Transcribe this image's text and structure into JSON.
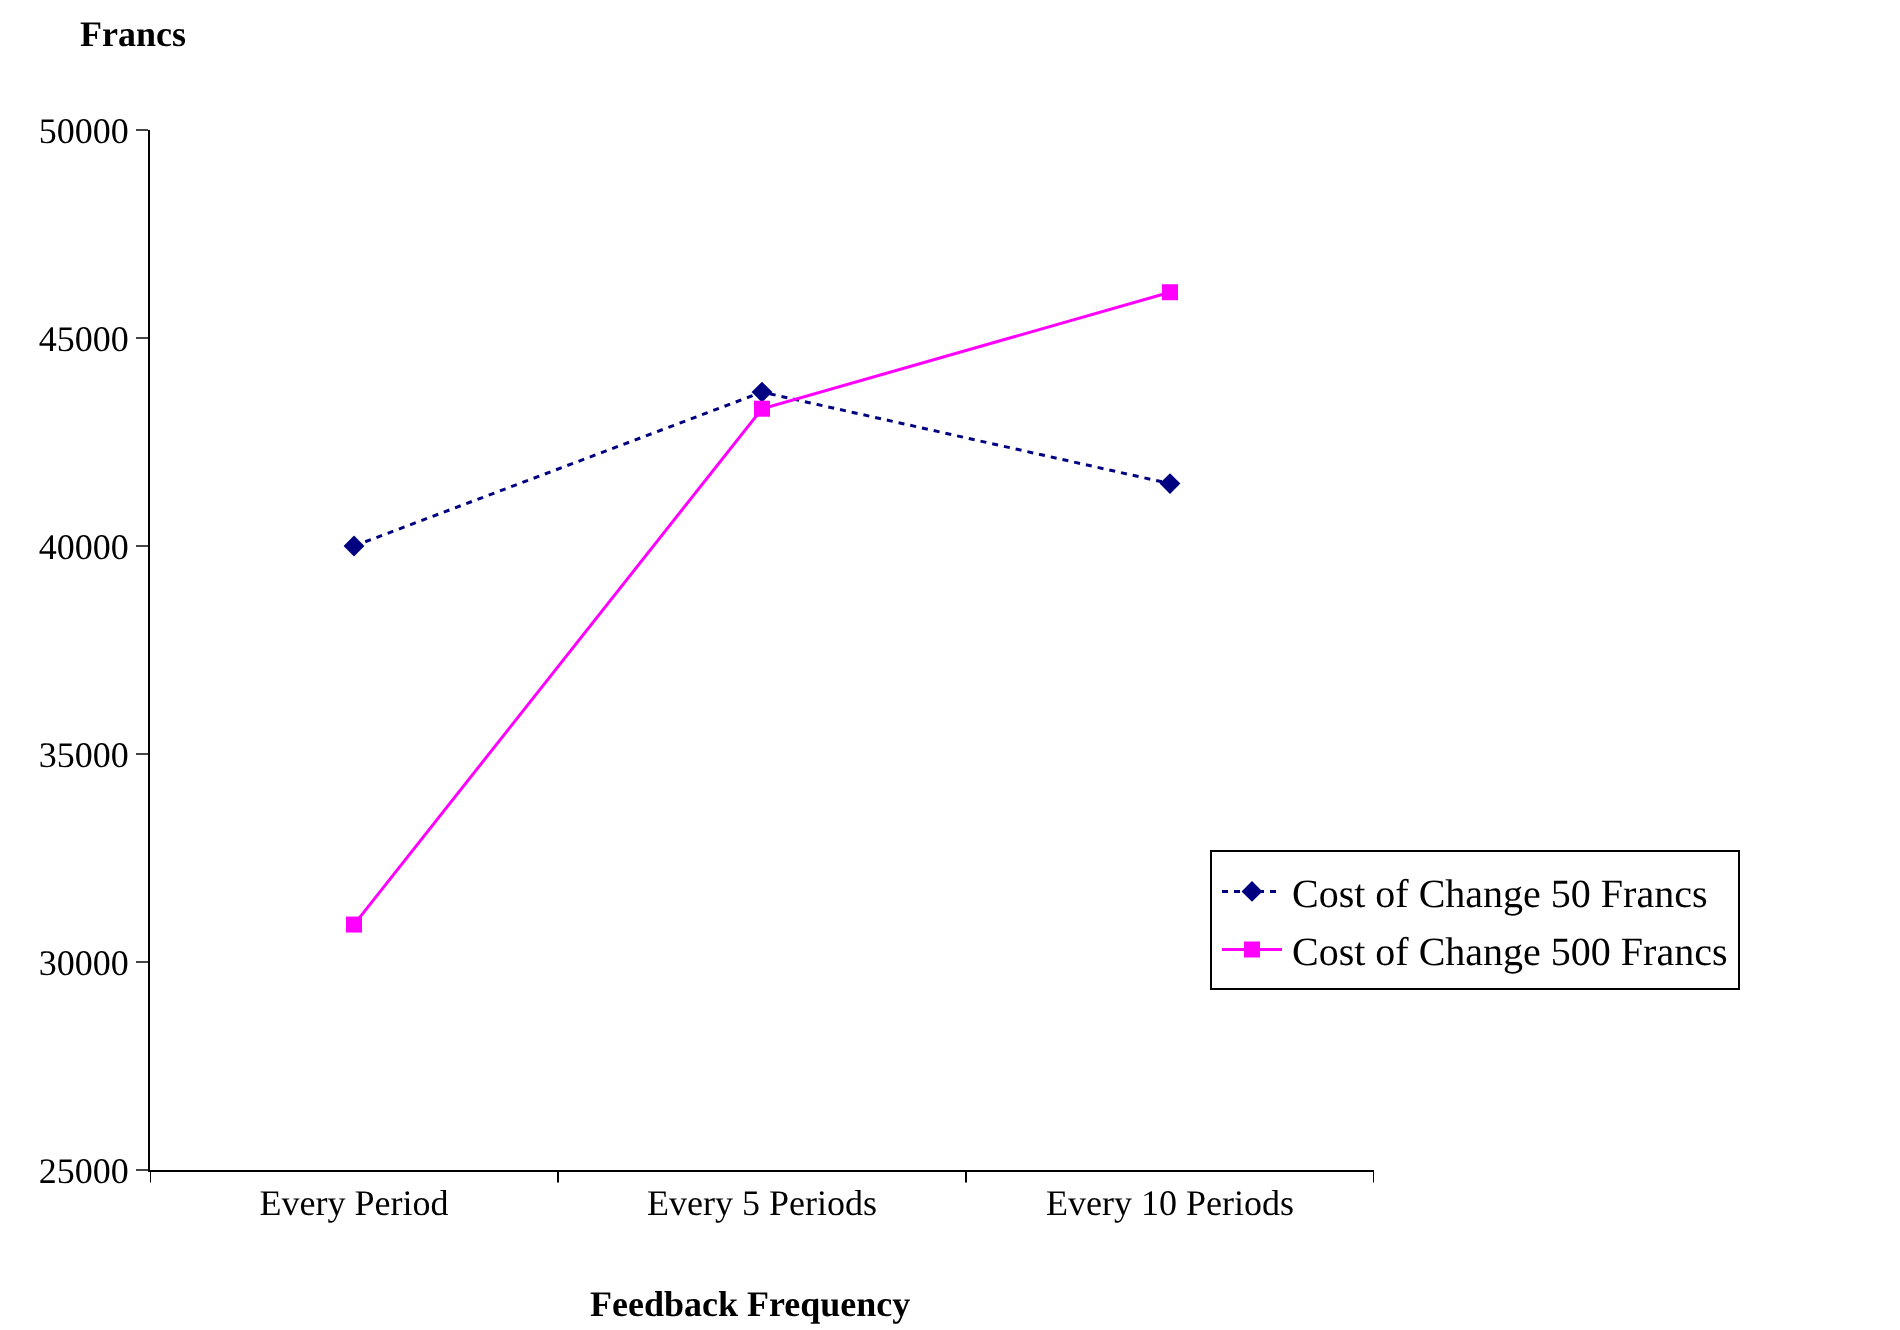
{
  "chart_data": {
    "type": "line",
    "ylabel": "Francs",
    "xlabel": "Feedback Frequency",
    "categories": [
      "Every Period",
      "Every 5 Periods",
      "Every 10 Periods"
    ],
    "series": [
      {
        "name": "Cost of Change 50 Francs",
        "color": "#000080",
        "values": [
          40000,
          43700,
          41500
        ],
        "marker": "diamond",
        "line_style": "dotted"
      },
      {
        "name": "Cost of Change 500 Francs",
        "color": "#ff00ff",
        "values": [
          30900,
          43300,
          46100
        ],
        "marker": "square",
        "line_style": "solid"
      }
    ],
    "ylim": [
      25000,
      50000
    ],
    "yticks": [
      25000,
      30000,
      35000,
      40000,
      45000,
      50000
    ],
    "legend": "right"
  }
}
